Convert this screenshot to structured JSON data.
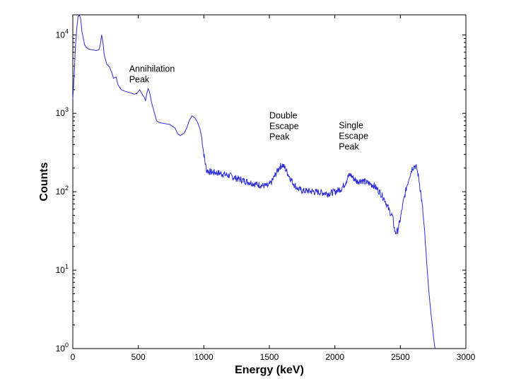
{
  "chart_data": {
    "type": "line",
    "title": "",
    "xlabel": "Energy (keV)",
    "ylabel": "Counts",
    "xlim": [
      0,
      3000
    ],
    "ylim": [
      1,
      18000
    ],
    "yscale": "log",
    "grid": false,
    "legend": "none",
    "line_color": "#2b2bd6",
    "x_ticks": [
      0,
      500,
      1000,
      1500,
      2000,
      2500,
      3000
    ],
    "x_tick_labels": [
      "0",
      "500",
      "1000",
      "1500",
      "2000",
      "2500",
      "3000"
    ],
    "y_ticks": [
      1,
      10,
      100,
      1000,
      10000
    ],
    "y_tick_labels": [
      {
        "base": "10",
        "exp": "0"
      },
      {
        "base": "10",
        "exp": "1"
      },
      {
        "base": "10",
        "exp": "2"
      },
      {
        "base": "10",
        "exp": "3"
      },
      {
        "base": "10",
        "exp": "4"
      }
    ],
    "annotations": [
      {
        "name": "annotation-annihilation-peak",
        "lines": [
          "Annihilation",
          "Peak"
        ],
        "x": 430,
        "y": 3400
      },
      {
        "name": "annotation-double-escape-peak",
        "lines": [
          "Double",
          "Escape",
          "Peak"
        ],
        "x": 1500,
        "y": 860
      },
      {
        "name": "annotation-single-escape-peak",
        "lines": [
          "Single",
          "Escape",
          "Peak"
        ],
        "x": 2030,
        "y": 640
      }
    ],
    "series": [
      {
        "points": [
          [
            0,
            1500
          ],
          [
            10,
            3000
          ],
          [
            20,
            7000
          ],
          [
            30,
            12000
          ],
          [
            40,
            17000
          ],
          [
            50,
            18000
          ],
          [
            60,
            16000
          ],
          [
            70,
            11000
          ],
          [
            80,
            9000
          ],
          [
            90,
            7500
          ],
          [
            100,
            7000
          ],
          [
            110,
            6800
          ],
          [
            120,
            6600
          ],
          [
            140,
            6500
          ],
          [
            160,
            6400
          ],
          [
            180,
            6300
          ],
          [
            200,
            6500
          ],
          [
            210,
            7500
          ],
          [
            220,
            10000
          ],
          [
            230,
            8000
          ],
          [
            240,
            5500
          ],
          [
            260,
            4200
          ],
          [
            280,
            3900
          ],
          [
            300,
            3200
          ],
          [
            310,
            2800
          ],
          [
            330,
            2900
          ],
          [
            345,
            2300
          ],
          [
            370,
            2000
          ],
          [
            400,
            1900
          ],
          [
            430,
            1850
          ],
          [
            450,
            1800
          ],
          [
            470,
            1750
          ],
          [
            490,
            1800
          ],
          [
            510,
            2000
          ],
          [
            525,
            1800
          ],
          [
            545,
            1600
          ],
          [
            555,
            1450
          ],
          [
            565,
            1800
          ],
          [
            575,
            2050
          ],
          [
            585,
            1900
          ],
          [
            600,
            1400
          ],
          [
            620,
            1050
          ],
          [
            640,
            800
          ],
          [
            660,
            760
          ],
          [
            700,
            740
          ],
          [
            740,
            720
          ],
          [
            780,
            650
          ],
          [
            800,
            550
          ],
          [
            820,
            520
          ],
          [
            850,
            560
          ],
          [
            870,
            650
          ],
          [
            890,
            820
          ],
          [
            910,
            930
          ],
          [
            930,
            880
          ],
          [
            950,
            780
          ],
          [
            970,
            640
          ],
          [
            985,
            480
          ],
          [
            1000,
            300
          ],
          [
            1020,
            190
          ],
          [
            1040,
            180
          ],
          [
            1100,
            175
          ],
          [
            1150,
            168
          ],
          [
            1200,
            160
          ],
          [
            1250,
            148
          ],
          [
            1300,
            140
          ],
          [
            1350,
            132
          ],
          [
            1400,
            125
          ],
          [
            1450,
            120
          ],
          [
            1490,
            118
          ],
          [
            1520,
            135
          ],
          [
            1550,
            170
          ],
          [
            1580,
            210
          ],
          [
            1600,
            220
          ],
          [
            1620,
            200
          ],
          [
            1650,
            160
          ],
          [
            1680,
            130
          ],
          [
            1720,
            108
          ],
          [
            1760,
            103
          ],
          [
            1800,
            102
          ],
          [
            1850,
            100
          ],
          [
            1900,
            98
          ],
          [
            1950,
            95
          ],
          [
            2000,
            100
          ],
          [
            2050,
            110
          ],
          [
            2080,
            130
          ],
          [
            2100,
            155
          ],
          [
            2120,
            165
          ],
          [
            2140,
            150
          ],
          [
            2170,
            135
          ],
          [
            2200,
            140
          ],
          [
            2250,
            130
          ],
          [
            2300,
            120
          ],
          [
            2340,
            100
          ],
          [
            2380,
            80
          ],
          [
            2410,
            60
          ],
          [
            2440,
            48
          ],
          [
            2460,
            30
          ],
          [
            2480,
            32
          ],
          [
            2500,
            45
          ],
          [
            2520,
            70
          ],
          [
            2545,
            110
          ],
          [
            2570,
            160
          ],
          [
            2590,
            200
          ],
          [
            2610,
            215
          ],
          [
            2625,
            200
          ],
          [
            2640,
            150
          ],
          [
            2655,
            100
          ],
          [
            2670,
            60
          ],
          [
            2685,
            30
          ],
          [
            2700,
            13
          ],
          [
            2715,
            6
          ],
          [
            2730,
            3.2
          ],
          [
            2745,
            1.9
          ],
          [
            2755,
            1.3
          ],
          [
            2765,
            1.0
          ]
        ]
      }
    ]
  }
}
